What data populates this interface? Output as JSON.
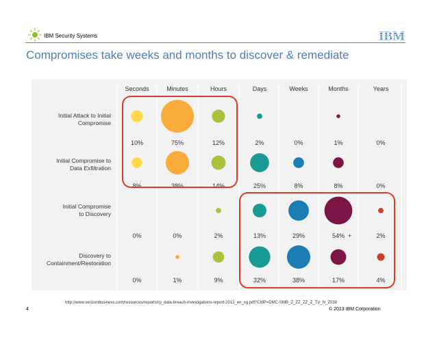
{
  "header": {
    "brand": "IBM Security Systems",
    "logo_text": "IBM",
    "title": "Compromises take weeks and months to discover & remediate"
  },
  "footer": {
    "source": "http://www.verizonbusiness.com/resources/reports/rp_data-breach-investigations-report-2012_en_xg.pdf?CMP=DMC-SMB_Z_ZZ_ZZ_Z_TV_N_Z038",
    "page_number": "4",
    "copyright": "© 2013 IBM Corporation"
  },
  "chart_data": {
    "type": "bubble-matrix",
    "categories": [
      "Seconds",
      "Minutes",
      "Hours",
      "Days",
      "Weeks",
      "Months",
      "Years"
    ],
    "rows": [
      {
        "label_lines": [
          "Initial Attack to Initial",
          "Compromise"
        ],
        "values": [
          10,
          75,
          12,
          2,
          0,
          1,
          0
        ],
        "labels": [
          "10%",
          "75%",
          "12%",
          "2%",
          "0%",
          "1%",
          "0%"
        ]
      },
      {
        "label_lines": [
          "Initial Compromise to",
          "Data Exfiltration"
        ],
        "values": [
          8,
          38,
          14,
          25,
          8,
          8,
          0
        ],
        "labels": [
          "8%",
          "38%",
          "14%",
          "25%",
          "8%",
          "8%",
          "0%"
        ]
      },
      {
        "label_lines": [
          "Initial Compromise",
          "to Discovery"
        ],
        "values": [
          0,
          0,
          2,
          13,
          29,
          54,
          2
        ],
        "labels": [
          "0%",
          "0%",
          "2%",
          "13%",
          "29%",
          "54%",
          "2%"
        ]
      },
      {
        "label_lines": [
          "Discovery to",
          "Containment/Restoration"
        ],
        "values": [
          0,
          1,
          9,
          32,
          38,
          17,
          4
        ],
        "labels": [
          "0%",
          "1%",
          "9%",
          "32%",
          "38%",
          "17%",
          "4%"
        ]
      }
    ],
    "annotation": {
      "row": 2,
      "col": 5,
      "text": "+"
    },
    "colors": [
      "#fdd94b",
      "#f9ab3b",
      "#a8c23b",
      "#1a9a95",
      "#1b7db3",
      "#7c1545",
      "#c8402b"
    ],
    "highlight_color": "#e03a26",
    "background": "#f2f2f2"
  }
}
